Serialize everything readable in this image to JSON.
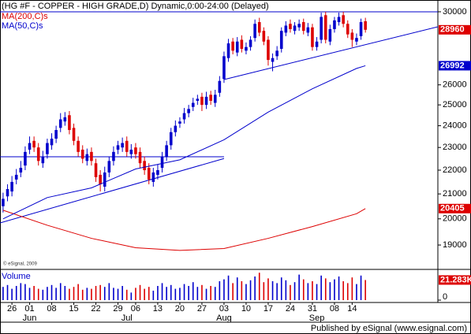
{
  "chart_data": {
    "type": "candlestick",
    "title": "(HG #F - COPPER - HIGH GRADE,D) Dynamic,0:00-24:00 (Delayed)",
    "categories": [
      null,
      null,
      "26",
      null,
      null,
      null,
      "01",
      null,
      null,
      null,
      null,
      "08",
      null,
      null,
      null,
      null,
      "15",
      null,
      null,
      null,
      null,
      "22",
      null,
      null,
      null,
      null,
      "29",
      null,
      null,
      null,
      "06",
      null,
      null,
      null,
      null,
      "13",
      null,
      null,
      null,
      null,
      "20",
      null,
      null,
      null,
      null,
      "27",
      null,
      null,
      null,
      null,
      "03",
      null,
      null,
      null,
      null,
      "10",
      null,
      null,
      null,
      null,
      "17",
      null,
      null,
      null,
      null,
      "24",
      null,
      null,
      null,
      null,
      "31",
      null,
      null,
      null,
      null,
      "08",
      null,
      null,
      null,
      "14",
      null,
      null,
      null
    ],
    "months": [
      null,
      null,
      null,
      null,
      null,
      null,
      "Jun",
      null,
      null,
      null,
      null,
      null,
      null,
      null,
      null,
      null,
      null,
      null,
      null,
      null,
      null,
      null,
      null,
      null,
      null,
      null,
      null,
      null,
      "Jul",
      null,
      null,
      null,
      null,
      null,
      null,
      null,
      null,
      null,
      null,
      null,
      null,
      null,
      null,
      null,
      null,
      null,
      null,
      null,
      null,
      null,
      "Aug",
      null,
      null,
      null,
      null,
      null,
      null,
      null,
      null,
      null,
      null,
      null,
      null,
      null,
      null,
      null,
      null,
      null,
      null,
      null,
      null,
      "Sep",
      null,
      null,
      null,
      null,
      null,
      null,
      null,
      null,
      null,
      null,
      null
    ],
    "xlim": [
      -0.7,
      98.4
    ],
    "ylim": [
      18170,
      30230
    ],
    "log_scale": true,
    "yticks": [
      19000,
      20000,
      21000,
      22000,
      23000,
      24000,
      25000,
      26000,
      30000
    ],
    "up_color": "#0000cc",
    "down_color": "#dd0000",
    "open": [
      20500,
      20900,
      21100,
      21600,
      21900,
      22200,
      22900,
      23300,
      23000,
      22300,
      22700,
      23100,
      23400,
      23900,
      24200,
      24500,
      23900,
      23300,
      22900,
      22400,
      22800,
      22300,
      21800,
      21300,
      21900,
      22400,
      22900,
      23000,
      23300,
      22700,
      23000,
      22800,
      22400,
      22100,
      21500,
      21800,
      22100,
      22600,
      23100,
      23700,
      24100,
      24300,
      24600,
      24900,
      25200,
      25400,
      25000,
      25500,
      25100,
      25600,
      26300,
      27400,
      28300,
      27700,
      28400,
      27800,
      28000,
      28500,
      29400,
      28900,
      28400,
      27200,
      27500,
      27900,
      28800,
      29300,
      28900,
      29100,
      29400,
      28800,
      29100,
      28000,
      28400,
      29800,
      28300,
      29000,
      29400,
      29800,
      29300,
      28800,
      28300,
      28600,
      29450
    ],
    "high": [
      21050,
      21400,
      21750,
      22050,
      22400,
      23050,
      23500,
      23500,
      23200,
      22850,
      23400,
      23650,
      24000,
      24600,
      24650,
      24700,
      24100,
      23500,
      23100,
      22950,
      23000,
      22500,
      22000,
      22150,
      22600,
      23050,
      23300,
      23450,
      23500,
      23150,
      23200,
      23000,
      22600,
      22300,
      22100,
      22250,
      22800,
      23300,
      23900,
      24250,
      24400,
      24850,
      25000,
      25350,
      25500,
      25600,
      25650,
      25700,
      25750,
      26450,
      27750,
      28450,
      28500,
      28550,
      28650,
      28250,
      28600,
      29550,
      29650,
      29100,
      28600,
      27650,
      28050,
      29100,
      29450,
      29550,
      29400,
      29550,
      29600,
      29350,
      29300,
      28550,
      29950,
      30000,
      29250,
      29700,
      29950,
      30000,
      29500,
      29000,
      28750,
      29600,
      29650
    ],
    "low": [
      20250,
      20700,
      20900,
      21400,
      21700,
      22000,
      22700,
      22800,
      22200,
      22100,
      22500,
      22900,
      23200,
      23700,
      24000,
      23600,
      23100,
      22600,
      22300,
      22200,
      22200,
      21500,
      21100,
      21100,
      21700,
      22200,
      22700,
      22800,
      22600,
      22500,
      22500,
      22100,
      21800,
      21400,
      21300,
      21600,
      21900,
      22400,
      22900,
      23500,
      23900,
      24100,
      24400,
      24700,
      25000,
      24700,
      24800,
      25000,
      24900,
      25400,
      26100,
      27200,
      27600,
      27500,
      27700,
      27600,
      27800,
      28300,
      28600,
      28100,
      27000,
      26700,
      27300,
      27700,
      28600,
      28800,
      28700,
      28900,
      28700,
      28600,
      27800,
      27800,
      28200,
      28200,
      28100,
      28800,
      29200,
      29100,
      28500,
      28000,
      28100,
      28400,
      28800
    ],
    "close": [
      20800,
      21200,
      21500,
      21800,
      22100,
      22800,
      23200,
      23000,
      22400,
      22600,
      23200,
      23400,
      23800,
      24300,
      24400,
      23800,
      23300,
      22800,
      22500,
      22700,
      22400,
      21700,
      21400,
      21900,
      22400,
      22800,
      23100,
      23200,
      22800,
      22900,
      22700,
      22300,
      22000,
      21600,
      21900,
      22000,
      22600,
      23100,
      23700,
      24000,
      24200,
      24600,
      24800,
      25100,
      25300,
      25000,
      25400,
      25200,
      25500,
      26200,
      27500,
      28200,
      27800,
      28300,
      27900,
      28000,
      28400,
      29300,
      28800,
      28300,
      27300,
      27400,
      27800,
      28900,
      29200,
      29000,
      29200,
      29300,
      28900,
      29100,
      28000,
      28300,
      29700,
      28400,
      29000,
      29500,
      29700,
      29300,
      28700,
      28400,
      28500,
      29400,
      28960
    ],
    "overlays": [
      {
        "name": "MA(200,C)s",
        "color": "#dd0000",
        "x": [
          0,
          10,
          20,
          30,
          40,
          50,
          60,
          70,
          80,
          82
        ],
        "values": [
          20340,
          19750,
          19250,
          18900,
          18800,
          18870,
          19250,
          19700,
          20200,
          20405
        ]
      },
      {
        "name": "MA(50,C)s",
        "color": "#0000cc",
        "x": [
          0,
          10,
          20,
          30,
          40,
          50,
          60,
          70,
          80,
          82
        ],
        "values": [
          20000,
          20850,
          21250,
          22050,
          22450,
          23350,
          24650,
          25800,
          26850,
          26992
        ]
      }
    ],
    "trendlines": [
      {
        "color": "#0000cc",
        "x": [
          -0.7,
          50
        ],
        "values": [
          19840,
          22508
        ]
      },
      {
        "color": "#0000cc",
        "x": [
          -0.7,
          50
        ],
        "values": [
          22584,
          22584
        ]
      },
      {
        "color": "#0000cc",
        "x": [
          50,
          98.4
        ],
        "values": [
          26270,
          29133
        ]
      },
      {
        "color": "#0000cc",
        "x": [
          -0.7,
          98.4
        ],
        "values": [
          30000,
          30000
        ]
      }
    ],
    "volume": {
      "label": "Volume",
      "ylim": [
        0,
        30000
      ],
      "yticks": [
        0
      ],
      "values": [
        14000,
        16000,
        12000,
        15000,
        18000,
        17000,
        13000,
        15000,
        12000,
        11000,
        14000,
        16000,
        13000,
        18000,
        15000,
        12000,
        14000,
        17000,
        11000,
        13000,
        12000,
        15000,
        16000,
        14000,
        18000,
        13000,
        12000,
        15000,
        11000,
        8000,
        13000,
        16000,
        12000,
        14000,
        10000,
        15000,
        18000,
        14000,
        16000,
        12000,
        13000,
        17000,
        15000,
        19000,
        14000,
        16000,
        12000,
        15000,
        14000,
        20000,
        22000,
        26000,
        18000,
        24000,
        20000,
        17000,
        21000,
        25000,
        29000,
        19000,
        23000,
        20000,
        18000,
        24000,
        21000,
        16000,
        19000,
        27000,
        22000,
        18000,
        20000,
        17000,
        26000,
        23000,
        19000,
        22000,
        25000,
        20000,
        18000,
        24000,
        17000,
        26000,
        21283
      ],
      "value_labels": [
        null,
        null,
        null,
        null,
        null,
        null,
        null,
        null,
        null,
        null,
        null,
        null,
        null,
        null,
        null,
        null,
        null,
        null,
        null,
        null,
        null,
        null,
        null,
        null,
        null,
        null,
        null,
        null,
        null,
        null,
        null,
        null,
        null,
        null,
        null,
        null,
        null,
        null,
        null,
        null,
        null,
        null,
        null,
        null,
        null,
        null,
        null,
        null,
        null,
        null,
        null,
        null,
        null,
        null,
        null,
        null,
        null,
        null,
        null,
        null,
        null,
        null,
        null,
        null,
        null,
        null,
        null,
        null,
        null,
        null,
        null,
        null,
        null,
        null,
        null,
        null,
        null,
        null,
        null,
        null,
        null,
        null,
        "21.283K"
      ]
    },
    "watermark": "© eSignal, 2009",
    "footer": "Published by eSignal (www.esignal.com)"
  }
}
